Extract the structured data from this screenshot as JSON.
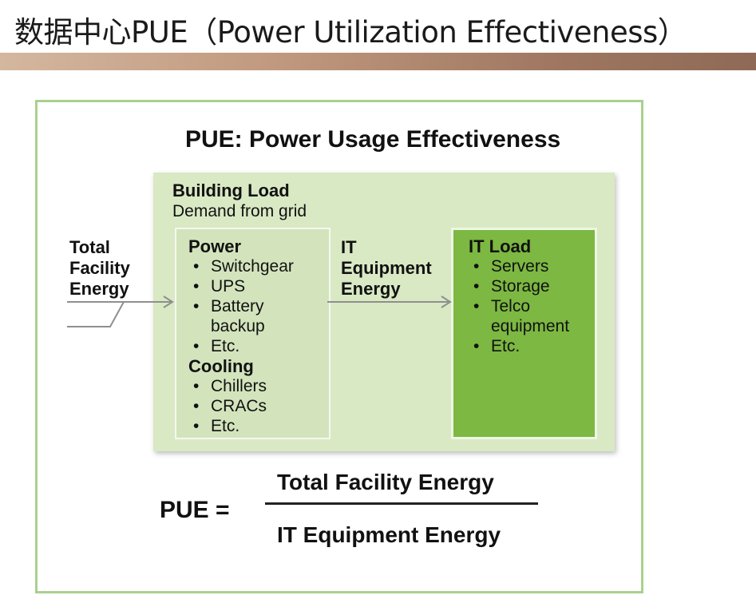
{
  "slide": {
    "title": "数据中心PUE（Power Utilization Effectiveness）"
  },
  "diagram": {
    "title": "PUE:  Power Usage Effectiveness",
    "building": {
      "title": "Building Load",
      "subtitle": "Demand from grid"
    },
    "input_label": [
      "Total",
      "Facility",
      "Energy"
    ],
    "facility": {
      "power_heading": "Power",
      "power_items": [
        "Switchgear",
        "UPS",
        "Battery",
        "backup",
        "Etc."
      ],
      "cooling_heading": "Cooling",
      "cooling_items": [
        "Chillers",
        "CRACs",
        "Etc."
      ]
    },
    "it_energy_label": [
      "IT",
      "Equipment",
      "Energy"
    ],
    "it_load": {
      "heading": "IT Load",
      "items": [
        "Servers",
        "Storage",
        "Telco",
        "equipment",
        "Etc."
      ]
    }
  },
  "formula": {
    "lhs": "PUE  =",
    "numerator": "Total Facility Energy",
    "denominator": "IT Equipment Energy"
  },
  "colors": {
    "frame_border": "#a9d18e",
    "building_fill": "#d9e9c4",
    "it_load_fill": "#7cb842",
    "title_bar": "#a57c64"
  }
}
